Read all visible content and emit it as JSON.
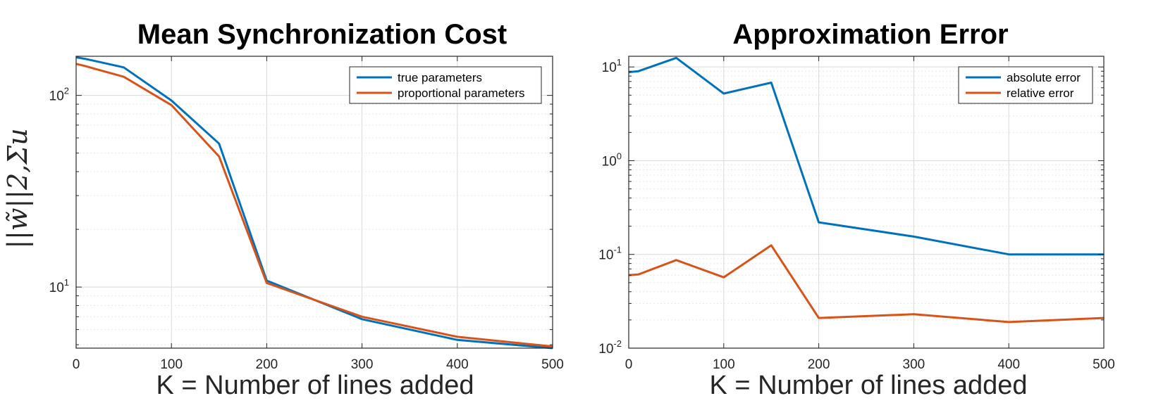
{
  "chart_data": [
    {
      "type": "line",
      "title": "Mean Synchronization Cost",
      "xlabel": "K = Number of lines added",
      "ylabel": "||w̃||2,Σu",
      "yscale": "log",
      "xlim": [
        0,
        500
      ],
      "ylim": [
        4.8,
        160
      ],
      "xticks": [
        0,
        100,
        200,
        300,
        400,
        500
      ],
      "yticks": [
        {
          "value": 10,
          "base": "10",
          "exp": "1"
        },
        {
          "value": 100,
          "base": "10",
          "exp": "2"
        }
      ],
      "grid": true,
      "legend": "top-right",
      "series": [
        {
          "name": "true parameters",
          "color": "#0072BD",
          "x": [
            0,
            10,
            50,
            100,
            150,
            200,
            300,
            400,
            500
          ],
          "y": [
            158,
            155,
            140,
            94,
            56,
            10.8,
            6.8,
            5.3,
            4.8
          ]
        },
        {
          "name": "proportional parameters",
          "color": "#D95319",
          "x": [
            0,
            10,
            50,
            100,
            150,
            200,
            300,
            400,
            500
          ],
          "y": [
            146,
            142,
            125,
            89,
            48,
            10.5,
            7.0,
            5.5,
            4.9
          ]
        }
      ]
    },
    {
      "type": "line",
      "title": "Approximation Error",
      "xlabel": "K = Number of lines added",
      "ylabel": "",
      "yscale": "log",
      "xlim": [
        0,
        500
      ],
      "ylim": [
        0.01,
        13
      ],
      "xticks": [
        0,
        100,
        200,
        300,
        400,
        500
      ],
      "yticks": [
        {
          "value": 0.01,
          "base": "10",
          "exp": "-2"
        },
        {
          "value": 0.1,
          "base": "10",
          "exp": "-1"
        },
        {
          "value": 1,
          "base": "10",
          "exp": "0"
        },
        {
          "value": 10,
          "base": "10",
          "exp": "1"
        }
      ],
      "grid": true,
      "legend": "top-right",
      "series": [
        {
          "name": "absolute error",
          "color": "#0072BD",
          "x": [
            0,
            10,
            50,
            100,
            150,
            200,
            300,
            400,
            500
          ],
          "y": [
            8.8,
            9.0,
            12.5,
            5.2,
            6.8,
            0.22,
            0.155,
            0.1,
            0.1
          ]
        },
        {
          "name": "relative error",
          "color": "#D95319",
          "x": [
            0,
            10,
            50,
            100,
            150,
            200,
            300,
            400,
            500
          ],
          "y": [
            0.06,
            0.061,
            0.087,
            0.057,
            0.125,
            0.021,
            0.023,
            0.019,
            0.021
          ]
        }
      ]
    }
  ]
}
